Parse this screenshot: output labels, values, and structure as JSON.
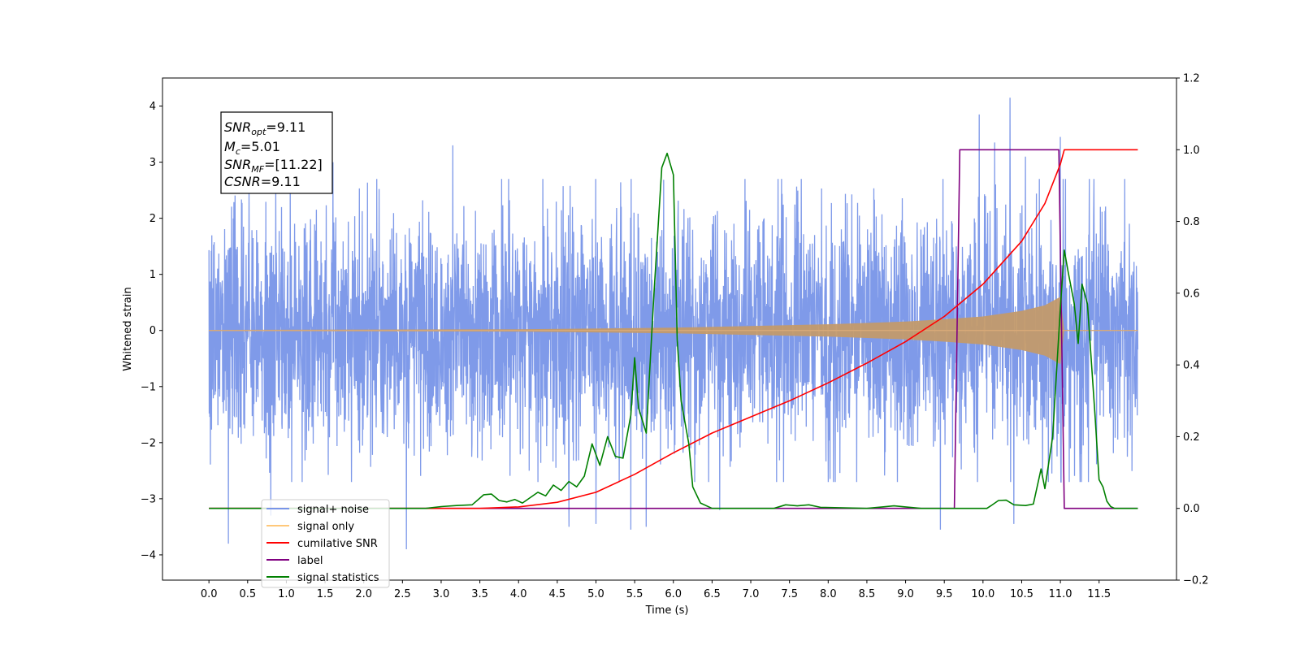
{
  "chart_data": {
    "type": "line",
    "xlabel": "Time (s)",
    "ylabel_left": "Whitened strain",
    "xlim": [
      -0.6,
      12.5
    ],
    "ylim_left": [
      -4.45,
      4.5
    ],
    "ylim_right": [
      -0.2,
      1.2
    ],
    "x_ticks": [
      "0.0",
      "0.5",
      "1.0",
      "1.5",
      "2.0",
      "2.5",
      "3.0",
      "3.5",
      "4.0",
      "4.5",
      "5.0",
      "5.5",
      "6.0",
      "6.5",
      "7.0",
      "7.5",
      "8.0",
      "8.5",
      "9.0",
      "9.5",
      "10.0",
      "10.5",
      "11.0",
      "11.5"
    ],
    "y_ticks_left": [
      "−4",
      "−3",
      "−2",
      "−1",
      "0",
      "1",
      "2",
      "3",
      "4"
    ],
    "y_ticks_right": [
      "−0.2",
      "0.0",
      "0.2",
      "0.4",
      "0.6",
      "0.8",
      "1.0",
      "1.2"
    ],
    "annotation": [
      {
        "base": "SNR",
        "sub": "opt",
        "rest": "=9.11"
      },
      {
        "base": "M",
        "sub": "c",
        "rest": "=5.01"
      },
      {
        "base": "SNR",
        "sub": "MF",
        "rest": "=[11.22]"
      },
      {
        "base": "CSNR",
        "sub": "",
        "rest": "=9.11"
      }
    ],
    "legend": {
      "position": "lower-left",
      "entries": [
        {
          "label": "signal+ noise",
          "color": "#7895e8"
        },
        {
          "label": "signal only",
          "color": "#ffc87a"
        },
        {
          "label": "cumilative SNR",
          "color": "#ff0000"
        },
        {
          "label": "label",
          "color": "#800080"
        },
        {
          "label": "signal statistics",
          "color": "#008000"
        }
      ]
    },
    "series": [
      {
        "name": "signal+ noise",
        "axis": "left",
        "color": "#7895e8",
        "x_range": [
          0.0,
          12.0
        ],
        "baseline_amplitude": 2.7,
        "peak_points": [
          [
            0.25,
            -3.8
          ],
          [
            0.8,
            -3.3
          ],
          [
            1.6,
            3.0
          ],
          [
            2.55,
            -3.9
          ],
          [
            3.15,
            3.3
          ],
          [
            4.65,
            -3.5
          ],
          [
            5.0,
            -3.45
          ],
          [
            5.45,
            -3.55
          ],
          [
            5.65,
            -3.5
          ],
          [
            6.6,
            -3.2
          ],
          [
            9.45,
            -3.55
          ],
          [
            9.95,
            3.85
          ],
          [
            10.15,
            3.35
          ],
          [
            10.35,
            4.15
          ],
          [
            10.55,
            3.1
          ],
          [
            10.4,
            -3.45
          ],
          [
            11.0,
            3.45
          ],
          [
            11.0,
            -3.45
          ]
        ]
      },
      {
        "name": "signal only",
        "axis": "left",
        "color": "#ffc87a",
        "envelope": [
          [
            0,
            0.01
          ],
          [
            4.0,
            0.02
          ],
          [
            6.0,
            0.05
          ],
          [
            7.0,
            0.08
          ],
          [
            8.0,
            0.11
          ],
          [
            9.0,
            0.16
          ],
          [
            9.5,
            0.2
          ],
          [
            10.0,
            0.25
          ],
          [
            10.5,
            0.35
          ],
          [
            10.8,
            0.45
          ],
          [
            11.0,
            0.6
          ],
          [
            11.05,
            0.0
          ],
          [
            12.0,
            0.0
          ]
        ]
      },
      {
        "name": "cumilative SNR",
        "axis": "right",
        "color": "#ff0000",
        "points": [
          [
            0,
            0
          ],
          [
            3.5,
            0
          ],
          [
            4.0,
            0.004
          ],
          [
            4.5,
            0.017
          ],
          [
            5.0,
            0.045
          ],
          [
            5.5,
            0.095
          ],
          [
            6.0,
            0.155
          ],
          [
            6.5,
            0.21
          ],
          [
            7.0,
            0.255
          ],
          [
            7.5,
            0.3
          ],
          [
            8.0,
            0.35
          ],
          [
            8.5,
            0.405
          ],
          [
            9.0,
            0.465
          ],
          [
            9.5,
            0.535
          ],
          [
            10.0,
            0.625
          ],
          [
            10.5,
            0.745
          ],
          [
            10.8,
            0.85
          ],
          [
            11.0,
            0.96
          ],
          [
            11.05,
            1.0
          ],
          [
            12.0,
            1.0
          ]
        ]
      },
      {
        "name": "label",
        "axis": "right",
        "color": "#800080",
        "points": [
          [
            0,
            0
          ],
          [
            9.63,
            0
          ],
          [
            9.7,
            1.0
          ],
          [
            10.98,
            1.0
          ],
          [
            11.05,
            0
          ],
          [
            12.0,
            0
          ]
        ]
      },
      {
        "name": "signal statistics",
        "axis": "right",
        "color": "#008000",
        "points": [
          [
            0,
            0
          ],
          [
            2.8,
            0
          ],
          [
            3.0,
            0.005
          ],
          [
            3.2,
            0.008
          ],
          [
            3.4,
            0.01
          ],
          [
            3.55,
            0.038
          ],
          [
            3.65,
            0.04
          ],
          [
            3.75,
            0.022
          ],
          [
            3.85,
            0.018
          ],
          [
            3.95,
            0.025
          ],
          [
            4.05,
            0.015
          ],
          [
            4.15,
            0.03
          ],
          [
            4.25,
            0.045
          ],
          [
            4.35,
            0.035
          ],
          [
            4.45,
            0.065
          ],
          [
            4.55,
            0.05
          ],
          [
            4.65,
            0.075
          ],
          [
            4.75,
            0.06
          ],
          [
            4.85,
            0.09
          ],
          [
            4.95,
            0.18
          ],
          [
            5.05,
            0.12
          ],
          [
            5.15,
            0.2
          ],
          [
            5.25,
            0.145
          ],
          [
            5.35,
            0.14
          ],
          [
            5.45,
            0.26
          ],
          [
            5.5,
            0.42
          ],
          [
            5.55,
            0.28
          ],
          [
            5.65,
            0.21
          ],
          [
            5.75,
            0.6
          ],
          [
            5.85,
            0.95
          ],
          [
            5.92,
            0.99
          ],
          [
            6.0,
            0.93
          ],
          [
            6.05,
            0.47
          ],
          [
            6.1,
            0.3
          ],
          [
            6.2,
            0.18
          ],
          [
            6.25,
            0.06
          ],
          [
            6.35,
            0.015
          ],
          [
            6.5,
            0.0
          ],
          [
            7.0,
            0.0
          ],
          [
            7.3,
            0.0
          ],
          [
            7.45,
            0.01
          ],
          [
            7.6,
            0.007
          ],
          [
            7.75,
            0.01
          ],
          [
            7.9,
            0.003
          ],
          [
            8.5,
            0.0
          ],
          [
            8.7,
            0.004
          ],
          [
            8.85,
            0.007
          ],
          [
            9.0,
            0.004
          ],
          [
            9.2,
            0.0
          ],
          [
            10.05,
            0.0
          ],
          [
            10.1,
            0.007
          ],
          [
            10.2,
            0.022
          ],
          [
            10.3,
            0.023
          ],
          [
            10.4,
            0.01
          ],
          [
            10.55,
            0.008
          ],
          [
            10.65,
            0.012
          ],
          [
            10.75,
            0.11
          ],
          [
            10.8,
            0.055
          ],
          [
            10.9,
            0.2
          ],
          [
            11.0,
            0.56
          ],
          [
            11.05,
            0.72
          ],
          [
            11.1,
            0.66
          ],
          [
            11.18,
            0.57
          ],
          [
            11.23,
            0.46
          ],
          [
            11.28,
            0.625
          ],
          [
            11.35,
            0.57
          ],
          [
            11.45,
            0.25
          ],
          [
            11.5,
            0.08
          ],
          [
            11.55,
            0.06
          ],
          [
            11.6,
            0.02
          ],
          [
            11.65,
            0.005
          ],
          [
            11.7,
            0.0
          ],
          [
            12.0,
            0.0
          ]
        ]
      }
    ]
  }
}
